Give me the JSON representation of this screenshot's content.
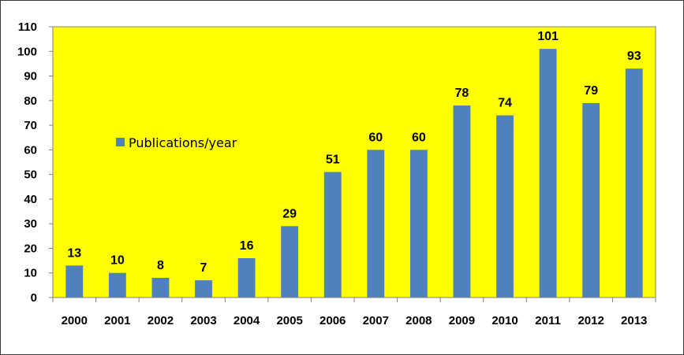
{
  "chart_data": {
    "type": "bar",
    "categories": [
      "2000",
      "2001",
      "2002",
      "2003",
      "2004",
      "2005",
      "2006",
      "2007",
      "2008",
      "2009",
      "2010",
      "2011",
      "2012",
      "2013"
    ],
    "series": [
      {
        "name": "Publications/year",
        "values": [
          13,
          10,
          8,
          7,
          16,
          29,
          51,
          60,
          60,
          78,
          74,
          101,
          79,
          93
        ]
      }
    ],
    "title": "",
    "xlabel": "",
    "ylabel": "",
    "ylim": [
      0,
      110
    ],
    "yticks": [
      0,
      10,
      20,
      30,
      40,
      50,
      60,
      70,
      80,
      90,
      100,
      110
    ],
    "grid": false,
    "legend_position": "middle-left",
    "colors": {
      "plot_background": "#FFFF00",
      "bar": "#4F81BD",
      "page_background": "#FFFFFF",
      "text": "#000000"
    }
  }
}
